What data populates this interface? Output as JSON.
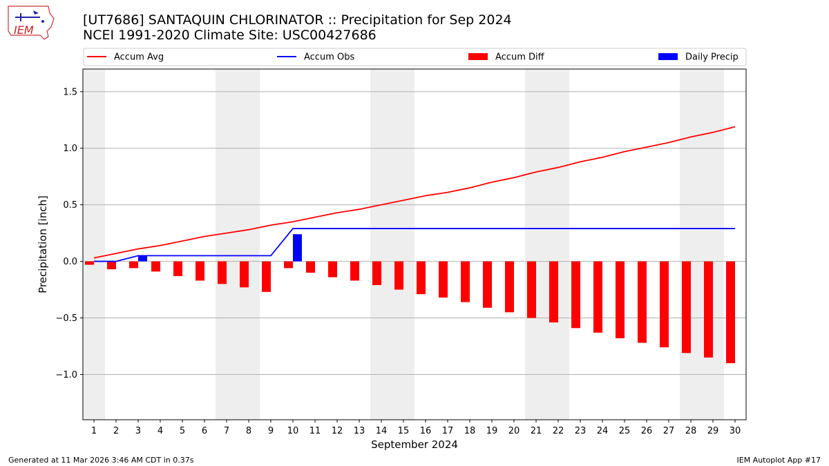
{
  "header": {
    "title_line1": "[UT7686] SANTAQUIN CHLORINATOR :: Precipitation for Sep 2024",
    "title_line2": "NCEI 1991-2020 Climate Site: USC00427686",
    "logo_text": "IEM"
  },
  "footer": {
    "generated": "Generated at 11 Mar 2026 3:46 AM CDT in 0.37s",
    "app": "IEM Autoplot App #17"
  },
  "colors": {
    "accum_avg": "#ff0000",
    "accum_obs": "#0000ff",
    "accum_diff": "#ff0000",
    "daily_precip": "#0000ff",
    "weekend_band": "#eeeeee",
    "grid": "#b0b0b0"
  },
  "chart_data": {
    "type": "bar",
    "xlabel": "September 2024",
    "ylabel": "Precipitation [inch]",
    "ylim": [
      -1.4,
      1.7
    ],
    "yticks": [
      -1.0,
      -0.5,
      0.0,
      0.5,
      1.0,
      1.5
    ],
    "ytick_labels": [
      "−1.0",
      "−0.5",
      "0.0",
      "0.5",
      "1.0",
      "1.5"
    ],
    "grid": "horizontal",
    "legend_placement": "top",
    "shaded_days": [
      1,
      7,
      8,
      14,
      15,
      21,
      22,
      28,
      29
    ],
    "days": [
      1,
      2,
      3,
      4,
      5,
      6,
      7,
      8,
      9,
      10,
      11,
      12,
      13,
      14,
      15,
      16,
      17,
      18,
      19,
      20,
      21,
      22,
      23,
      24,
      25,
      26,
      27,
      28,
      29,
      30
    ],
    "series": [
      {
        "name": "Accum Avg",
        "kind": "line",
        "values": [
          0.03,
          0.07,
          0.11,
          0.14,
          0.18,
          0.22,
          0.25,
          0.28,
          0.32,
          0.35,
          0.39,
          0.43,
          0.46,
          0.5,
          0.54,
          0.58,
          0.61,
          0.65,
          0.7,
          0.74,
          0.79,
          0.83,
          0.88,
          0.92,
          0.97,
          1.01,
          1.05,
          1.1,
          1.14,
          1.19
        ]
      },
      {
        "name": "Accum Obs",
        "kind": "line",
        "values": [
          0.0,
          0.0,
          0.05,
          0.05,
          0.05,
          0.05,
          0.05,
          0.05,
          0.05,
          0.29,
          0.29,
          0.29,
          0.29,
          0.29,
          0.29,
          0.29,
          0.29,
          0.29,
          0.29,
          0.29,
          0.29,
          0.29,
          0.29,
          0.29,
          0.29,
          0.29,
          0.29,
          0.29,
          0.29,
          0.29
        ]
      },
      {
        "name": "Accum Diff",
        "kind": "bar",
        "values": [
          -0.03,
          -0.07,
          -0.06,
          -0.09,
          -0.13,
          -0.17,
          -0.2,
          -0.23,
          -0.27,
          -0.06,
          -0.1,
          -0.14,
          -0.17,
          -0.21,
          -0.25,
          -0.29,
          -0.32,
          -0.36,
          -0.41,
          -0.45,
          -0.5,
          -0.54,
          -0.59,
          -0.63,
          -0.68,
          -0.72,
          -0.76,
          -0.81,
          -0.85,
          -0.9
        ]
      },
      {
        "name": "Daily Precip",
        "kind": "bar",
        "values": [
          0,
          0,
          0.05,
          0,
          0,
          0,
          0,
          0,
          0,
          0.24,
          0,
          0,
          0,
          0,
          0,
          0,
          0,
          0,
          0,
          0,
          0,
          0,
          0,
          0,
          0,
          0,
          0,
          0,
          0,
          0
        ]
      }
    ]
  }
}
